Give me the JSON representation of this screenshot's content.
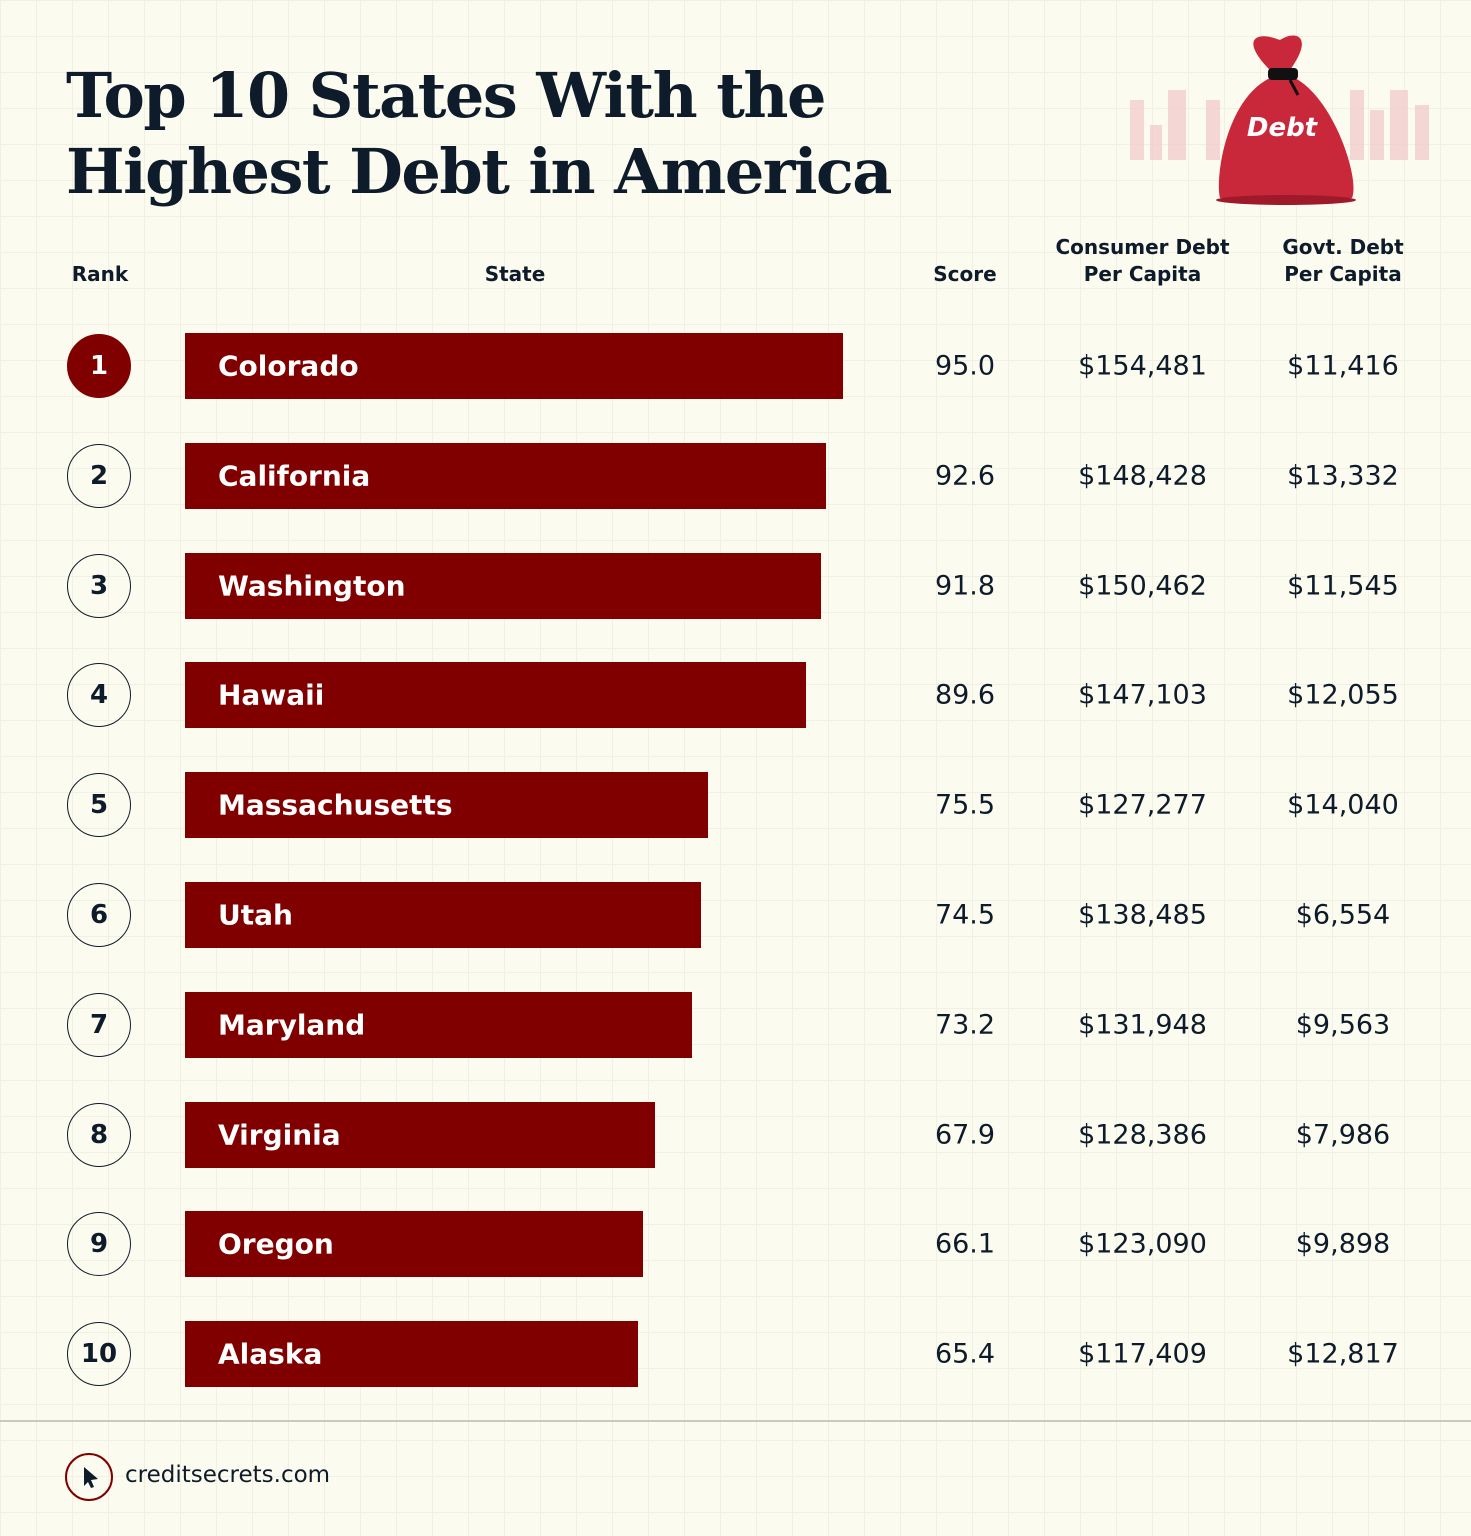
{
  "chart_data": {
    "type": "bar",
    "title": "Top 10 States With the Highest Debt in America",
    "headers": {
      "rank": "Rank",
      "state": "State",
      "score": "Score",
      "consumer": "Consumer Debt Per Capita",
      "govt": "Govt. Debt Per Capita"
    },
    "ranks": [
      1,
      2,
      3,
      4,
      5,
      6,
      7,
      8,
      9,
      10
    ],
    "categories": [
      "Colorado",
      "California",
      "Washington",
      "Hawaii",
      "Massachusetts",
      "Utah",
      "Maryland",
      "Virginia",
      "Oregon",
      "Alaska"
    ],
    "values": [
      95.0,
      92.6,
      91.8,
      89.6,
      75.5,
      74.5,
      73.2,
      67.9,
      66.1,
      65.4
    ],
    "value_labels": [
      "95.0",
      "92.6",
      "91.8",
      "89.6",
      "75.5",
      "74.5",
      "73.2",
      "67.9",
      "66.1",
      "65.4"
    ],
    "color": "#800000",
    "consumer_debt": [
      "$154,481",
      "$148,428",
      "$150,462",
      "$147,103",
      "$127,277",
      "$138,485",
      "$131,948",
      "$128,386",
      "$123,090",
      "$117,409"
    ],
    "govt_debt": [
      "$11,416",
      "$13,332",
      "$11,545",
      "$12,055",
      "$14,040",
      "$6,554",
      "$9,563",
      "$7,986",
      "$9,898",
      "$12,817"
    ],
    "icon_label": "Debt",
    "source": "creditsecrets.com"
  }
}
